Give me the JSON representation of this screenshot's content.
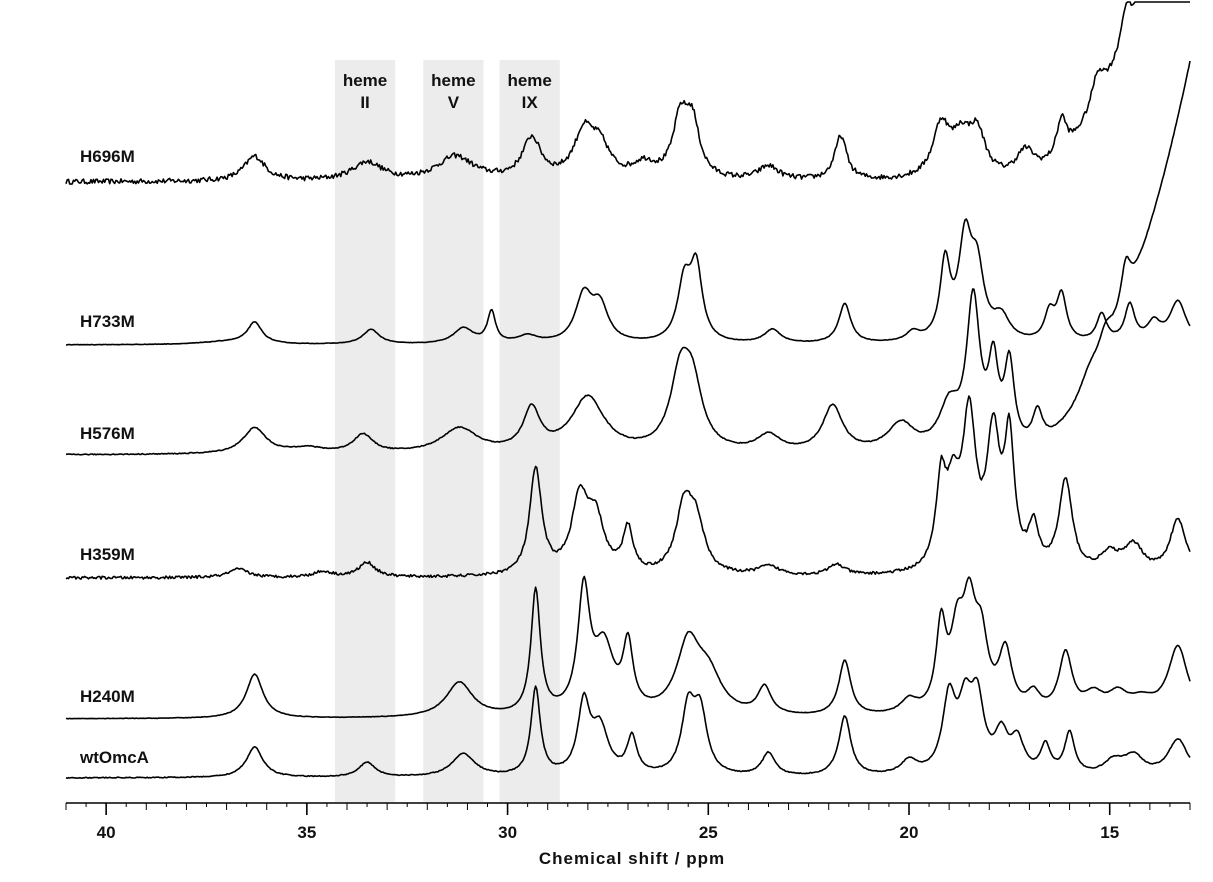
{
  "chart_data": {
    "type": "line",
    "title": "",
    "xlabel": "Chemical shift / ppm",
    "ylabel": "",
    "xlim": [
      41,
      13
    ],
    "x_reversed": true,
    "grid": false,
    "x_ticks": [
      "40",
      "35",
      "30",
      "25",
      "20",
      "15"
    ],
    "x_tick_values": [
      40,
      35,
      30,
      25,
      20,
      15
    ],
    "highlight_regions": [
      {
        "line1": "heme",
        "line2": "II",
        "from": 34.3,
        "to": 32.8
      },
      {
        "line1": "heme",
        "line2": "V",
        "from": 32.1,
        "to": 30.6
      },
      {
        "line1": "heme",
        "line2": "IX",
        "from": 30.2,
        "to": 28.7
      }
    ],
    "series": [
      {
        "name": "H696M",
        "baseline": 0.0,
        "noise": 0.55,
        "peaks": [
          [
            36.3,
            2.7,
            0.32
          ],
          [
            33.5,
            2.0,
            0.45
          ],
          [
            31.3,
            2.6,
            0.55
          ],
          [
            29.4,
            4.4,
            0.28
          ],
          [
            28.1,
            4.8,
            0.3
          ],
          [
            27.7,
            3.2,
            0.3
          ],
          [
            26.6,
            1.6,
            0.35
          ],
          [
            25.7,
            6.0,
            0.22
          ],
          [
            25.4,
            5.8,
            0.22
          ],
          [
            23.5,
            1.5,
            0.3
          ],
          [
            21.7,
            4.8,
            0.18
          ],
          [
            19.2,
            5.5,
            0.25
          ],
          [
            18.7,
            4.0,
            0.3
          ],
          [
            18.3,
            4.5,
            0.25
          ],
          [
            17.1,
            3.0,
            0.3
          ],
          [
            16.2,
            4.0,
            0.15
          ],
          [
            15.3,
            3.5,
            0.2
          ],
          [
            14.6,
            3.8,
            0.15
          ],
          [
            13.9,
            2.0,
            0.3
          ]
        ],
        "rise": [
          14.5,
          16.0
        ]
      },
      {
        "name": "H733M",
        "baseline": 0.0,
        "noise": 0.05,
        "peaks": [
          [
            37.0,
            0.3,
            0.8
          ],
          [
            36.3,
            2.3,
            0.22
          ],
          [
            33.4,
            1.6,
            0.25
          ],
          [
            31.1,
            1.7,
            0.3
          ],
          [
            30.4,
            3.4,
            0.12
          ],
          [
            29.5,
            0.8,
            0.3
          ],
          [
            28.1,
            5.0,
            0.25
          ],
          [
            27.7,
            3.8,
            0.25
          ],
          [
            25.6,
            6.3,
            0.2
          ],
          [
            25.3,
            7.8,
            0.18
          ],
          [
            23.4,
            1.5,
            0.25
          ],
          [
            21.6,
            4.3,
            0.18
          ],
          [
            19.9,
            1.0,
            0.2
          ],
          [
            19.1,
            8.2,
            0.15
          ],
          [
            18.6,
            10.5,
            0.2
          ],
          [
            18.3,
            7.0,
            0.2
          ],
          [
            17.7,
            2.5,
            0.25
          ],
          [
            16.5,
            3.0,
            0.15
          ],
          [
            16.2,
            5.0,
            0.15
          ],
          [
            15.2,
            3.0,
            0.15
          ],
          [
            14.5,
            4.0,
            0.15
          ],
          [
            13.9,
            2.0,
            0.2
          ],
          [
            13.3,
            4.5,
            0.25
          ]
        ],
        "rise": [
          13.6,
          0.0
        ]
      },
      {
        "name": "H576M",
        "baseline": 0.0,
        "noise": 0.1,
        "peaks": [
          [
            36.3,
            2.8,
            0.35
          ],
          [
            35.0,
            0.6,
            0.5
          ],
          [
            33.6,
            2.0,
            0.3
          ],
          [
            31.2,
            2.7,
            0.55
          ],
          [
            29.4,
            4.5,
            0.25
          ],
          [
            28.0,
            6.0,
            0.5
          ],
          [
            25.7,
            7.5,
            0.3
          ],
          [
            25.4,
            6.5,
            0.3
          ],
          [
            23.5,
            1.8,
            0.35
          ],
          [
            21.9,
            5.0,
            0.3
          ],
          [
            20.2,
            3.0,
            0.4
          ],
          [
            19.0,
            4.5,
            0.3
          ],
          [
            18.4,
            16.0,
            0.2
          ],
          [
            17.9,
            8.5,
            0.15
          ],
          [
            17.5,
            9.0,
            0.15
          ],
          [
            16.8,
            3.5,
            0.15
          ],
          [
            15.5,
            2.0,
            0.3
          ],
          [
            15.1,
            2.5,
            0.2
          ],
          [
            14.6,
            4.5,
            0.15
          ]
        ],
        "rise": [
          14.7,
          15.0
        ]
      },
      {
        "name": "H359M",
        "baseline": 0.0,
        "noise": 0.3,
        "peaks": [
          [
            36.7,
            0.9,
            0.3
          ],
          [
            34.6,
            0.6,
            0.3
          ],
          [
            33.5,
            1.6,
            0.25
          ],
          [
            29.3,
            11.5,
            0.18
          ],
          [
            28.2,
            8.0,
            0.25
          ],
          [
            27.8,
            5.5,
            0.25
          ],
          [
            27.0,
            4.8,
            0.15
          ],
          [
            25.6,
            7.0,
            0.25
          ],
          [
            25.3,
            5.0,
            0.25
          ],
          [
            23.5,
            1.0,
            0.35
          ],
          [
            21.8,
            1.2,
            0.25
          ],
          [
            19.2,
            9.0,
            0.15
          ],
          [
            18.9,
            7.5,
            0.2
          ],
          [
            18.5,
            16.0,
            0.2
          ],
          [
            17.9,
            14.0,
            0.2
          ],
          [
            17.5,
            13.5,
            0.15
          ],
          [
            16.9,
            4.5,
            0.15
          ],
          [
            16.1,
            10.0,
            0.2
          ],
          [
            15.0,
            2.0,
            0.3
          ],
          [
            14.4,
            3.0,
            0.3
          ],
          [
            13.3,
            6.0,
            0.25
          ]
        ],
        "rise": [
          0.0,
          0.0
        ]
      },
      {
        "name": "H240M",
        "baseline": 0.0,
        "noise": 0.05,
        "peaks": [
          [
            36.3,
            4.8,
            0.25
          ],
          [
            31.2,
            3.8,
            0.4
          ],
          [
            29.3,
            13.5,
            0.14
          ],
          [
            28.1,
            13.0,
            0.18
          ],
          [
            27.6,
            7.0,
            0.3
          ],
          [
            27.0,
            7.0,
            0.15
          ],
          [
            25.5,
            7.5,
            0.35
          ],
          [
            25.0,
            4.0,
            0.4
          ],
          [
            23.6,
            3.0,
            0.2
          ],
          [
            21.6,
            6.0,
            0.18
          ],
          [
            20.0,
            1.5,
            0.25
          ],
          [
            19.2,
            9.0,
            0.15
          ],
          [
            18.8,
            7.5,
            0.2
          ],
          [
            18.5,
            10.0,
            0.2
          ],
          [
            18.2,
            7.0,
            0.2
          ],
          [
            17.6,
            6.5,
            0.2
          ],
          [
            16.9,
            2.0,
            0.2
          ],
          [
            16.1,
            6.5,
            0.2
          ],
          [
            15.4,
            2.0,
            0.3
          ],
          [
            14.8,
            2.0,
            0.3
          ],
          [
            14.2,
            1.5,
            0.4
          ],
          [
            13.3,
            7.5,
            0.3
          ]
        ],
        "rise": [
          0.0,
          0.0
        ]
      },
      {
        "name": "wtOmcA",
        "baseline": 0.0,
        "noise": 0.1,
        "peaks": [
          [
            36.3,
            3.3,
            0.25
          ],
          [
            33.5,
            1.6,
            0.25
          ],
          [
            31.1,
            2.5,
            0.35
          ],
          [
            29.3,
            9.5,
            0.14
          ],
          [
            28.1,
            7.5,
            0.18
          ],
          [
            27.7,
            5.0,
            0.25
          ],
          [
            26.9,
            4.0,
            0.15
          ],
          [
            25.5,
            7.0,
            0.2
          ],
          [
            25.2,
            6.5,
            0.2
          ],
          [
            23.5,
            2.5,
            0.2
          ],
          [
            21.6,
            6.5,
            0.18
          ],
          [
            20.0,
            1.5,
            0.25
          ],
          [
            19.0,
            8.0,
            0.2
          ],
          [
            18.6,
            6.5,
            0.2
          ],
          [
            18.3,
            7.5,
            0.2
          ],
          [
            17.7,
            4.0,
            0.2
          ],
          [
            17.3,
            3.5,
            0.2
          ],
          [
            16.6,
            3.0,
            0.15
          ],
          [
            16.0,
            4.5,
            0.15
          ],
          [
            14.9,
            1.5,
            0.3
          ],
          [
            14.4,
            2.0,
            0.3
          ],
          [
            13.3,
            4.0,
            0.3
          ]
        ],
        "rise": [
          0.0,
          0.0
        ]
      }
    ]
  }
}
